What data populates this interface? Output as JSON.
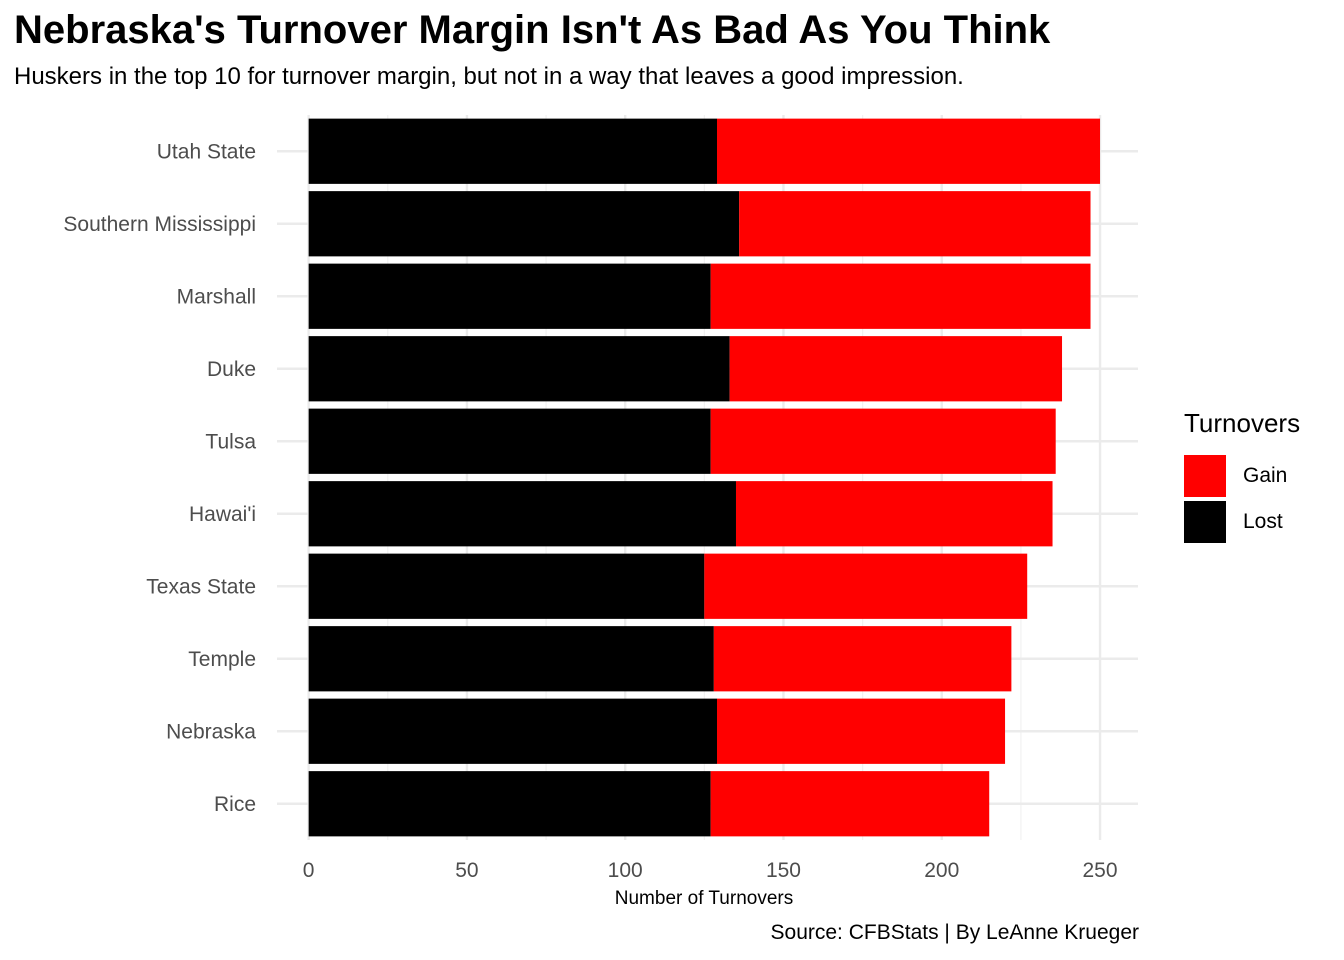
{
  "title": "Nebraska's Turnover Margin Isn't As Bad As You Think",
  "subtitle": "Huskers in the top 10 for turnover margin, but not in a way that leaves a good impression.",
  "caption": "Source: CFBStats | By LeAnne Krueger",
  "legend": {
    "title": "Turnovers",
    "items": [
      {
        "label": "Gain",
        "color": "#ff0000"
      },
      {
        "label": "Lost",
        "color": "#000000"
      }
    ]
  },
  "chart_data": {
    "type": "bar",
    "orientation": "horizontal",
    "stacked": true,
    "categories": [
      "Utah State",
      "Southern Mississippi",
      "Marshall",
      "Duke",
      "Tulsa",
      "Hawai'i",
      "Texas State",
      "Temple",
      "Nebraska",
      "Rice"
    ],
    "series": [
      {
        "name": "Lost",
        "color": "#000000",
        "values": [
          129,
          136,
          127,
          133,
          127,
          135,
          125,
          128,
          129,
          127
        ]
      },
      {
        "name": "Gain",
        "color": "#ff0000",
        "values": [
          121,
          111,
          120,
          105,
          109,
          100,
          102,
          94,
          91,
          88
        ]
      }
    ],
    "xlabel": "Number of Turnovers",
    "ylabel": "",
    "xlim": [
      -10,
      262
    ],
    "xticks": [
      0,
      50,
      100,
      150,
      200,
      250
    ],
    "grid": true,
    "legend_position": "right"
  }
}
